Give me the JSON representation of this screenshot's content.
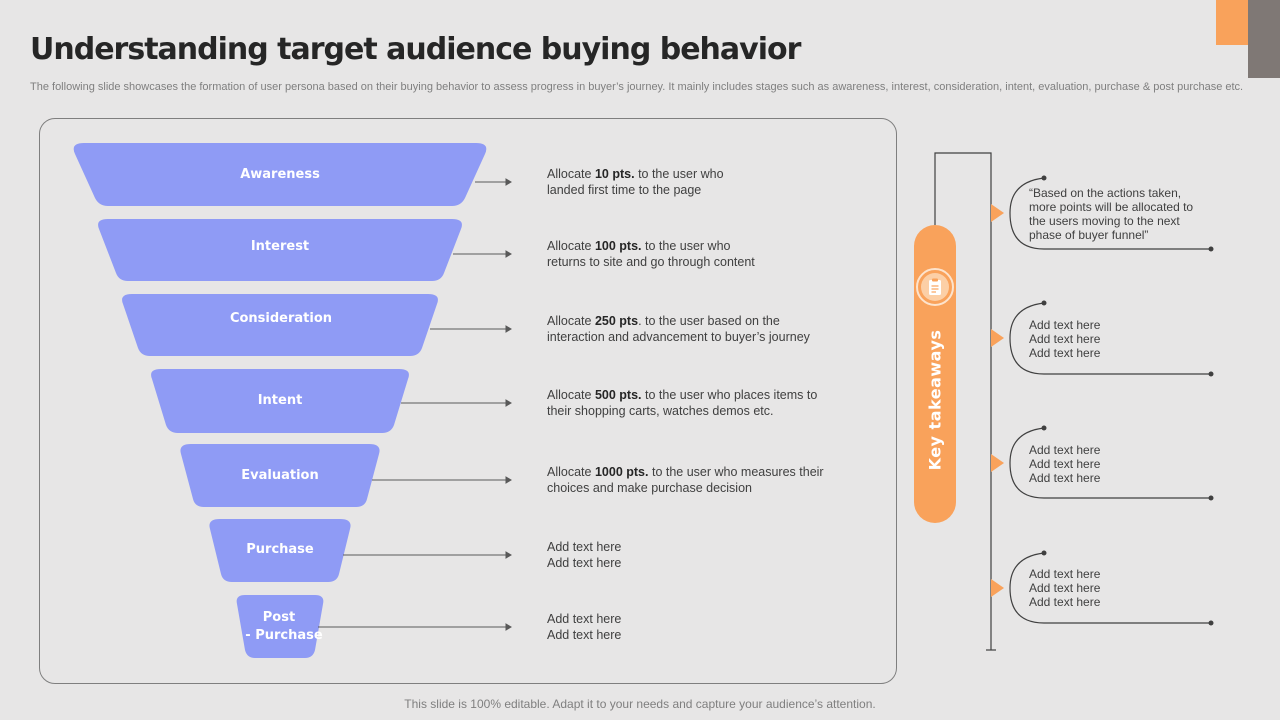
{
  "header": {
    "title": "Understanding target audience buying behavior",
    "subtitle": "The following slide showcases the formation of user persona based on their buying behavior to assess progress in buyer’s journey. It mainly includes stages such as awareness, interest, consideration, intent, evaluation, purchase & post purchase etc."
  },
  "colors": {
    "funnel": "#8f9bf5",
    "accent": "#f9a25b",
    "corner_gray": "#7f7875",
    "background": "#e7e6e6"
  },
  "funnel": {
    "stages": [
      {
        "label": "Awareness"
      },
      {
        "label": "Interest"
      },
      {
        "label": "Consideration"
      },
      {
        "label": "Intent"
      },
      {
        "label": "Evaluation"
      },
      {
        "label": "Purchase"
      },
      {
        "label_line1": "Post",
        "label_line2": "- Purchase"
      }
    ]
  },
  "descriptions": [
    {
      "prefix": "Allocate",
      "points": "10 pts.",
      "rest": "to the user who",
      "line2": "landed first time to the page"
    },
    {
      "prefix": "Allocate",
      "points": "100 pts.",
      "rest": "to the user who",
      "line2": "returns to site and go through content"
    },
    {
      "prefix": "Allocate",
      "points": "250 pts",
      "rest": ". to the user based on the",
      "line2": "interaction and advancement  to buyer’s journey"
    },
    {
      "prefix": "Allocate",
      "points": "500 pts.",
      "rest": "to the user who places items to",
      "line2": "their shopping carts, watches demos etc."
    },
    {
      "prefix": "Allocate",
      "points": "1000 pts.",
      "rest": "to the user who measures their",
      "line2": "choices and make purchase decision"
    },
    {
      "line1": "Add text here",
      "line2": "Add text here"
    },
    {
      "line1": "Add text here",
      "line2": "Add text here"
    }
  ],
  "key_takeaways": {
    "label": "Key takeaways",
    "icon": "notepad-icon",
    "items": [
      {
        "lines": [
          "“Based on the actions taken,",
          "more points will be allocated to",
          "the users moving to the next",
          "phase of buyer funnel”"
        ]
      },
      {
        "lines": [
          "Add text here",
          "Add text here",
          "Add text here"
        ]
      },
      {
        "lines": [
          "Add text here",
          "Add text here",
          "Add text here"
        ]
      },
      {
        "lines": [
          "Add text here",
          "Add text here",
          "Add text here"
        ]
      }
    ]
  },
  "footer": {
    "text": "This slide is 100% editable. Adapt it to your needs and capture your audience’s attention."
  }
}
